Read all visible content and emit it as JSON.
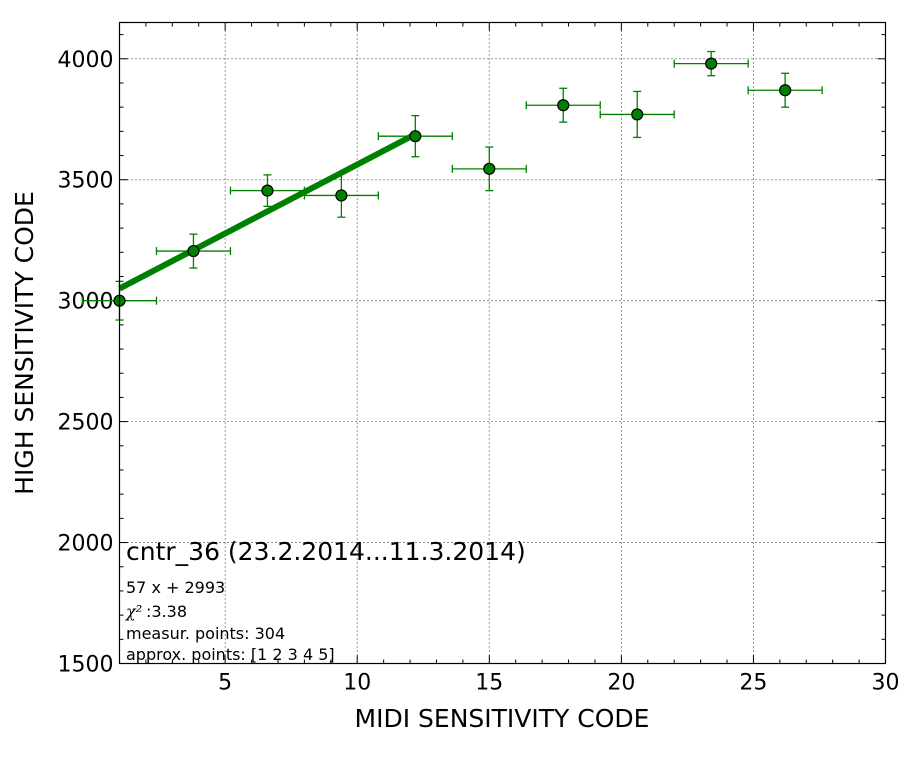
{
  "chart_data": {
    "type": "scatter",
    "xlabel": "MIDI SENSITIVITY CODE",
    "ylabel": "HIGH SENSITIVITY CODE",
    "xlim": [
      1,
      30
    ],
    "ylim": [
      1500,
      4150
    ],
    "x_ticks": [
      5,
      10,
      15,
      20,
      25,
      30
    ],
    "y_ticks": [
      1500,
      2000,
      2500,
      3000,
      3500,
      4000
    ],
    "grid": true,
    "colors": {
      "points": "#008000",
      "point_edge": "#000000",
      "errorbars": "#008000",
      "fit_line": "#008000"
    },
    "series": [
      {
        "points": [
          {
            "x": 1.0,
            "y": 3000,
            "xerr": 1.4,
            "yerr": 80
          },
          {
            "x": 3.8,
            "y": 3205,
            "xerr": 1.4,
            "yerr": 70
          },
          {
            "x": 6.6,
            "y": 3455,
            "xerr": 1.4,
            "yerr": 65
          },
          {
            "x": 9.4,
            "y": 3435,
            "xerr": 1.4,
            "yerr": 90
          },
          {
            "x": 12.2,
            "y": 3680,
            "xerr": 1.4,
            "yerr": 85
          },
          {
            "x": 15.0,
            "y": 3545,
            "xerr": 1.4,
            "yerr": 90
          },
          {
            "x": 17.8,
            "y": 3808,
            "xerr": 1.4,
            "yerr": 70
          },
          {
            "x": 20.6,
            "y": 3770,
            "xerr": 1.4,
            "yerr": 95
          },
          {
            "x": 23.4,
            "y": 3980,
            "xerr": 1.4,
            "yerr": 50
          },
          {
            "x": 26.2,
            "y": 3870,
            "xerr": 1.4,
            "yerr": 70
          }
        ]
      }
    ],
    "fit_line": {
      "x": [
        1.0,
        12.2
      ],
      "y": [
        3050,
        3688
      ]
    },
    "annotations": {
      "title": "cntr_36 (23.2.2014...11.3.2014)",
      "equation": "57 x + 2993",
      "chi_symbol": "χ²",
      "chi_value": " :3.38",
      "measur_points": "measur. points: 304",
      "approx_points": "approx. points: [1 2 3 4 5]"
    }
  }
}
